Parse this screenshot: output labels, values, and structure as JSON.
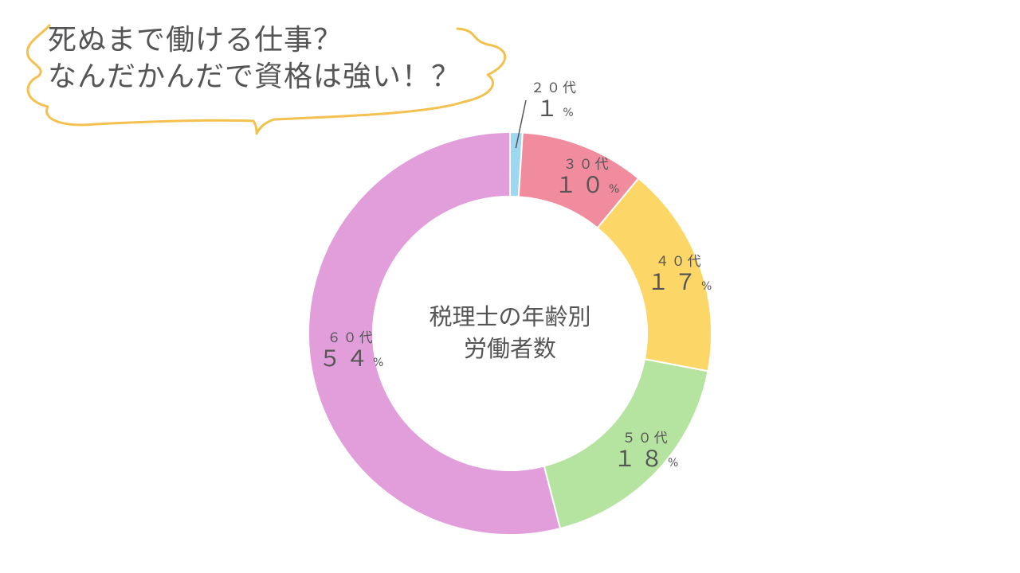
{
  "headline": {
    "line1": "死ぬまで働ける仕事？",
    "line2": "なんだかんだで資格は強い！？"
  },
  "colors": {
    "bubble_outline": "#F2C14E",
    "text": "#555555"
  },
  "chart_data": {
    "type": "pie",
    "variant": "donut",
    "center_label": [
      "税理士の年齢別",
      "労働者数"
    ],
    "unit_symbol": "%",
    "slices": [
      {
        "category": "２０代",
        "value_label": "１",
        "value": 1,
        "color": "#9ED7F0"
      },
      {
        "category": "３０代",
        "value_label": "１０",
        "value": 10,
        "color": "#F08C9E"
      },
      {
        "category": "４０代",
        "value_label": "１７",
        "value": 17,
        "color": "#FCD767"
      },
      {
        "category": "５０代",
        "value_label": "１８",
        "value": 18,
        "color": "#B5E3A0"
      },
      {
        "category": "６０代",
        "value_label": "５４",
        "value": 54,
        "color": "#E19EDB"
      }
    ]
  }
}
